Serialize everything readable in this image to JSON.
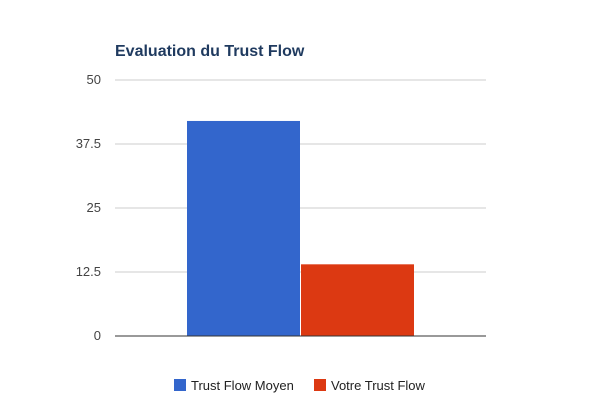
{
  "chart_data": {
    "type": "bar",
    "title": "Evaluation du Trust Flow",
    "xlabel": "",
    "ylabel": "",
    "ylim": [
      0,
      50
    ],
    "yticks": [
      0,
      12.5,
      25,
      37.5,
      50
    ],
    "ytick_labels": [
      "0",
      "12.5",
      "25",
      "37.5",
      "50"
    ],
    "grid": true,
    "legend_position": "bottom",
    "categories": [
      ""
    ],
    "series": [
      {
        "name": "Trust Flow Moyen",
        "values": [
          42
        ],
        "color": "#3366cc"
      },
      {
        "name": "Votre Trust Flow",
        "values": [
          14
        ],
        "color": "#dc3912"
      }
    ]
  }
}
